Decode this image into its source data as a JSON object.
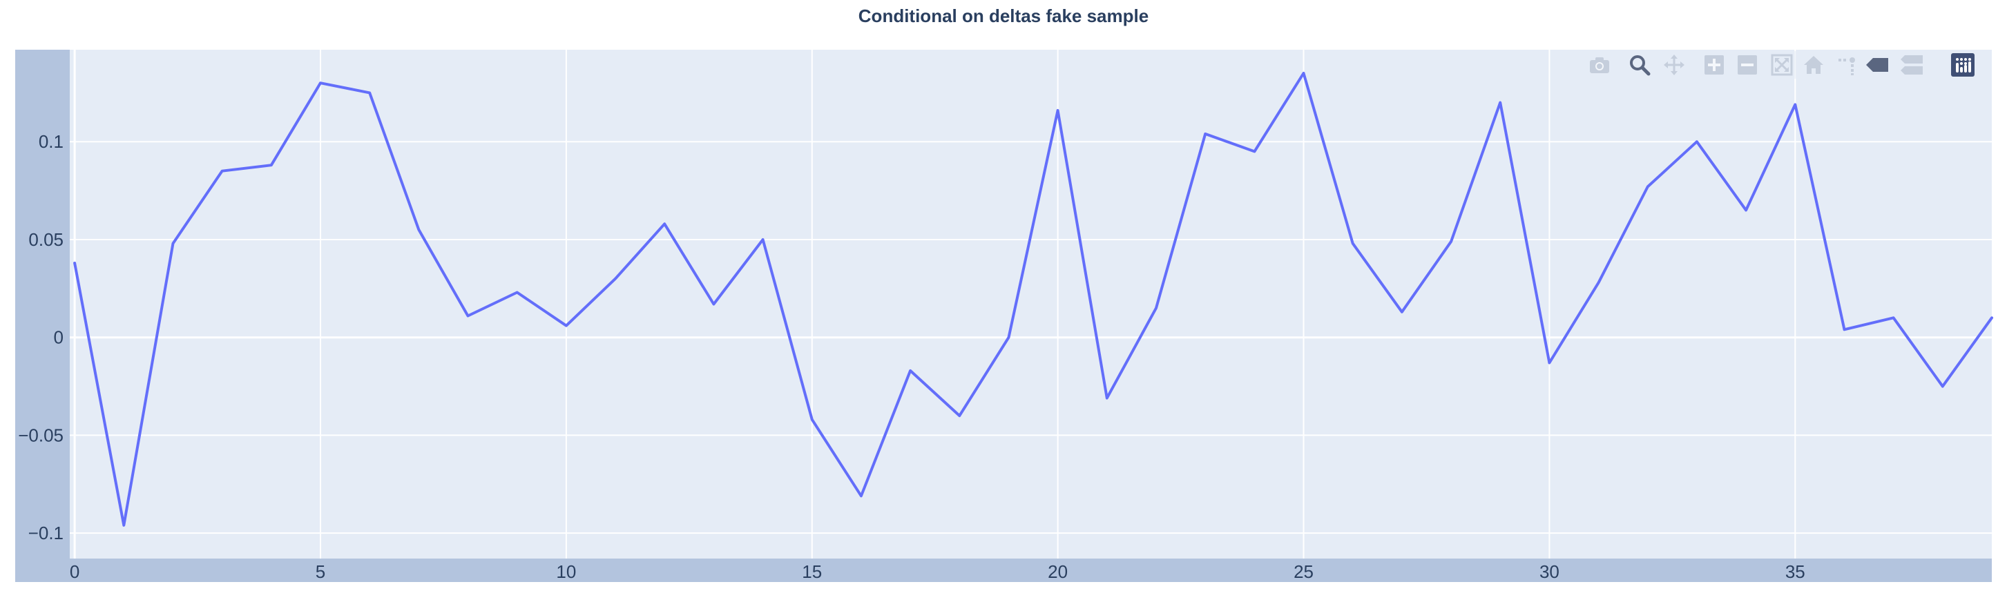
{
  "chart_data": {
    "type": "line",
    "title": "Conditional on deltas fake sample",
    "xlabel": "",
    "ylabel": "",
    "x": [
      0,
      1,
      2,
      3,
      4,
      5,
      6,
      7,
      8,
      9,
      10,
      11,
      12,
      13,
      14,
      15,
      16,
      17,
      18,
      19,
      20,
      21,
      22,
      23,
      24,
      25,
      26,
      27,
      28,
      29,
      30,
      31,
      32,
      33,
      34,
      35,
      36,
      37,
      38,
      39
    ],
    "series": [
      {
        "values": [
          0.038,
          -0.096,
          0.048,
          0.085,
          0.088,
          0.13,
          0.125,
          0.055,
          0.011,
          0.023,
          0.006,
          0.03,
          0.058,
          0.017,
          0.05,
          -0.042,
          -0.081,
          -0.017,
          -0.04,
          0.0,
          0.116,
          -0.031,
          0.015,
          0.104,
          0.095,
          0.135,
          0.048,
          0.013,
          0.049,
          0.12,
          -0.013,
          0.028,
          0.077,
          0.1,
          0.065,
          0.119,
          0.004,
          0.01,
          -0.025,
          0.01
        ],
        "color": "#636efa"
      }
    ],
    "xlim": [
      -0.1,
      39
    ],
    "ylim": [
      -0.113,
      0.147
    ],
    "x_ticks": [
      0,
      5,
      10,
      15,
      20,
      25,
      30,
      35
    ],
    "x_tick_labels": [
      "0",
      "5",
      "10",
      "15",
      "20",
      "25",
      "30",
      "35"
    ],
    "y_ticks": [
      -0.1,
      -0.05,
      0,
      0.05,
      0.1
    ],
    "y_tick_labels": [
      "−0.1",
      "−0.05",
      "0",
      "0.05",
      "0.1"
    ],
    "grid": true,
    "legend": "none",
    "plot_background": "#e5ecf6",
    "axis_rangeslider_color": "#b3c4de",
    "gridline_color": "#ffffff"
  },
  "modebar": {
    "buttons": [
      {
        "icon": "camera-icon",
        "name": "download-plot-button",
        "color": "#c5cedc"
      },
      {
        "icon": "zoom-icon",
        "name": "zoom-button",
        "color": "#5a6680",
        "active": true
      },
      {
        "icon": "pan-icon",
        "name": "pan-button",
        "color": "#c5cedc"
      },
      {
        "icon": "zoom-in-icon",
        "name": "zoom-in-button",
        "color": "#c5cedc"
      },
      {
        "icon": "zoom-out-icon",
        "name": "zoom-out-button",
        "color": "#c5cedc"
      },
      {
        "icon": "autoscale-icon",
        "name": "autoscale-button",
        "color": "#c5cedc"
      },
      {
        "icon": "home-icon",
        "name": "reset-axes-button",
        "color": "#c5cedc"
      },
      {
        "icon": "spike-lines-icon",
        "name": "toggle-spike-lines-button",
        "color": "#c5cedc"
      },
      {
        "icon": "hover-closest-icon",
        "name": "hover-closest-button",
        "color": "#5a6680"
      },
      {
        "icon": "hover-compare-icon",
        "name": "hover-compare-button",
        "color": "#c5cedc"
      },
      {
        "icon": "plotly-logo-icon",
        "name": "plotly-logo-link",
        "color": "#3f4f75"
      }
    ]
  }
}
